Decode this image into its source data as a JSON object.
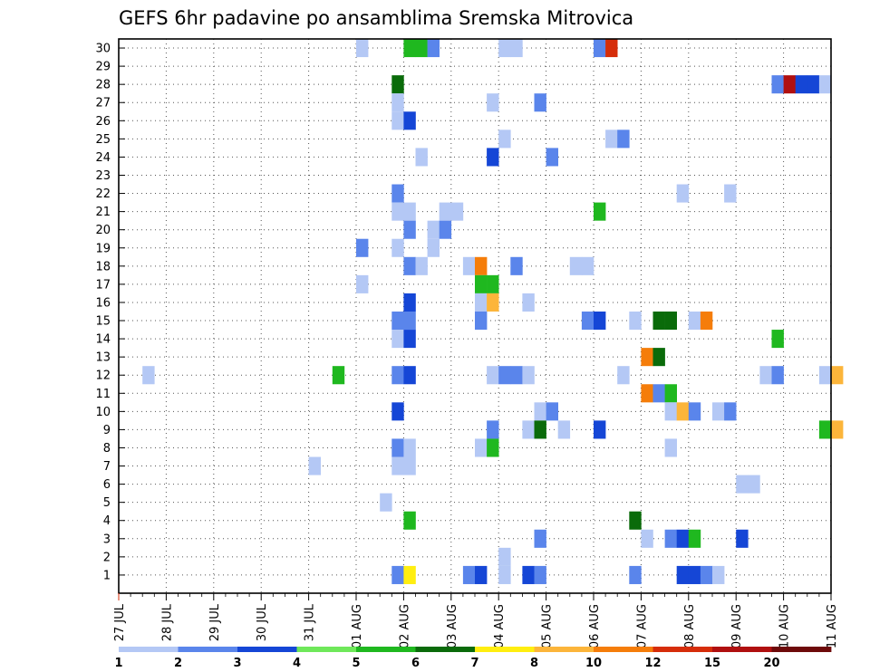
{
  "chart_data": {
    "type": "heatmap",
    "title": "GEFS 6hr padavine po ansamblima Sremska Mitrovica",
    "x_start": "27 JUL",
    "x_end": "11 AUG",
    "x_ticks": [
      "27 JUL",
      "28 JUL",
      "29 JUL",
      "30 JUL",
      "31 JUL",
      "01 AUG",
      "02 AUG",
      "03 AUG",
      "04 AUG",
      "05 AUG",
      "06 AUG",
      "07 AUG",
      "08 AUG",
      "09 AUG",
      "10 AUG",
      "11 AUG"
    ],
    "y_ticks": [
      1,
      2,
      3,
      4,
      5,
      6,
      7,
      8,
      9,
      10,
      11,
      12,
      13,
      14,
      15,
      16,
      17,
      18,
      19,
      20,
      21,
      22,
      23,
      24,
      25,
      26,
      27,
      28,
      29,
      30
    ],
    "y_range": [
      0,
      30
    ],
    "grid": true,
    "color_scale": {
      "labels": [
        "1",
        "2",
        "3",
        "4",
        "5",
        "6",
        "7",
        "8",
        "10",
        "12",
        "15",
        "20"
      ],
      "colors": [
        "#b4c8f5",
        "#5a85eb",
        "#1546d6",
        "#6fe85a",
        "#1fb81f",
        "#0a6b0a",
        "#ffee10",
        "#fcb53a",
        "#f57d0a",
        "#d62d0a",
        "#b01010",
        "#6e0a0a"
      ]
    },
    "cells": [
      {
        "t": "01 AUG 00",
        "m": 30,
        "v": 1
      },
      {
        "t": "02 AUG 00",
        "m": 30,
        "v": 5
      },
      {
        "t": "02 AUG 06",
        "m": 30,
        "v": 5
      },
      {
        "t": "02 AUG 12",
        "m": 30,
        "v": 2
      },
      {
        "t": "04 AUG 00",
        "m": 30,
        "v": 1
      },
      {
        "t": "04 AUG 06",
        "m": 30,
        "v": 1
      },
      {
        "t": "06 AUG 00",
        "m": 30,
        "v": 2
      },
      {
        "t": "06 AUG 06",
        "m": 30,
        "v": 12
      },
      {
        "t": "01 AUG 18",
        "m": 28,
        "v": 6
      },
      {
        "t": "09 AUG 18",
        "m": 28,
        "v": 2
      },
      {
        "t": "10 AUG 00",
        "m": 28,
        "v": 15
      },
      {
        "t": "10 AUG 06",
        "m": 28,
        "v": 3
      },
      {
        "t": "10 AUG 12",
        "m": 28,
        "v": 3
      },
      {
        "t": "10 AUG 18",
        "m": 28,
        "v": 1
      },
      {
        "t": "01 AUG 18",
        "m": 27,
        "v": 1
      },
      {
        "t": "03 AUG 18",
        "m": 27,
        "v": 1
      },
      {
        "t": "04 AUG 18",
        "m": 27,
        "v": 2
      },
      {
        "t": "01 AUG 18",
        "m": 26,
        "v": 1
      },
      {
        "t": "02 AUG 00",
        "m": 26,
        "v": 3
      },
      {
        "t": "04 AUG 00",
        "m": 25,
        "v": 1
      },
      {
        "t": "06 AUG 06",
        "m": 25,
        "v": 1
      },
      {
        "t": "06 AUG 12",
        "m": 25,
        "v": 2
      },
      {
        "t": "02 AUG 06",
        "m": 24,
        "v": 1
      },
      {
        "t": "03 AUG 18",
        "m": 24,
        "v": 3
      },
      {
        "t": "05 AUG 00",
        "m": 24,
        "v": 2
      },
      {
        "t": "01 AUG 18",
        "m": 22,
        "v": 2
      },
      {
        "t": "07 AUG 18",
        "m": 22,
        "v": 1
      },
      {
        "t": "08 AUG 18",
        "m": 22,
        "v": 1
      },
      {
        "t": "01 AUG 18",
        "m": 21,
        "v": 1
      },
      {
        "t": "02 AUG 00",
        "m": 21,
        "v": 1
      },
      {
        "t": "02 AUG 18",
        "m": 21,
        "v": 1
      },
      {
        "t": "03 AUG 00",
        "m": 21,
        "v": 1
      },
      {
        "t": "06 AUG 00",
        "m": 21,
        "v": 5
      },
      {
        "t": "02 AUG 00",
        "m": 20,
        "v": 2
      },
      {
        "t": "02 AUG 12",
        "m": 20,
        "v": 1
      },
      {
        "t": "02 AUG 18",
        "m": 20,
        "v": 2
      },
      {
        "t": "01 AUG 00",
        "m": 19,
        "v": 2
      },
      {
        "t": "01 AUG 18",
        "m": 19,
        "v": 1
      },
      {
        "t": "02 AUG 12",
        "m": 19,
        "v": 1
      },
      {
        "t": "02 AUG 00",
        "m": 18,
        "v": 2
      },
      {
        "t": "02 AUG 06",
        "m": 18,
        "v": 1
      },
      {
        "t": "03 AUG 06",
        "m": 18,
        "v": 1
      },
      {
        "t": "03 AUG 12",
        "m": 18,
        "v": 10
      },
      {
        "t": "04 AUG 06",
        "m": 18,
        "v": 2
      },
      {
        "t": "05 AUG 12",
        "m": 18,
        "v": 1
      },
      {
        "t": "05 AUG 18",
        "m": 18,
        "v": 1
      },
      {
        "t": "01 AUG 00",
        "m": 17,
        "v": 1
      },
      {
        "t": "03 AUG 12",
        "m": 17,
        "v": 5
      },
      {
        "t": "03 AUG 18",
        "m": 17,
        "v": 5
      },
      {
        "t": "02 AUG 00",
        "m": 16,
        "v": 3
      },
      {
        "t": "03 AUG 12",
        "m": 16,
        "v": 1
      },
      {
        "t": "03 AUG 18",
        "m": 16,
        "v": 8
      },
      {
        "t": "04 AUG 12",
        "m": 16,
        "v": 1
      },
      {
        "t": "01 AUG 18",
        "m": 15,
        "v": 2
      },
      {
        "t": "02 AUG 00",
        "m": 15,
        "v": 2
      },
      {
        "t": "03 AUG 12",
        "m": 15,
        "v": 2
      },
      {
        "t": "05 AUG 18",
        "m": 15,
        "v": 2
      },
      {
        "t": "06 AUG 00",
        "m": 15,
        "v": 3
      },
      {
        "t": "06 AUG 18",
        "m": 15,
        "v": 1
      },
      {
        "t": "07 AUG 06",
        "m": 15,
        "v": 6
      },
      {
        "t": "07 AUG 12",
        "m": 15,
        "v": 6
      },
      {
        "t": "08 AUG 00",
        "m": 15,
        "v": 1
      },
      {
        "t": "08 AUG 06",
        "m": 15,
        "v": 10
      },
      {
        "t": "01 AUG 18",
        "m": 14,
        "v": 1
      },
      {
        "t": "02 AUG 00",
        "m": 14,
        "v": 3
      },
      {
        "t": "09 AUG 18",
        "m": 14,
        "v": 5
      },
      {
        "t": "07 AUG 00",
        "m": 13,
        "v": 10
      },
      {
        "t": "07 AUG 06",
        "m": 13,
        "v": 6
      },
      {
        "t": "27 JUL 12",
        "m": 12,
        "v": 1
      },
      {
        "t": "31 JUL 12",
        "m": 12,
        "v": 5
      },
      {
        "t": "01 AUG 18",
        "m": 12,
        "v": 2
      },
      {
        "t": "02 AUG 00",
        "m": 12,
        "v": 3
      },
      {
        "t": "03 AUG 18",
        "m": 12,
        "v": 1
      },
      {
        "t": "04 AUG 00",
        "m": 12,
        "v": 2
      },
      {
        "t": "04 AUG 06",
        "m": 12,
        "v": 2
      },
      {
        "t": "04 AUG 12",
        "m": 12,
        "v": 1
      },
      {
        "t": "06 AUG 12",
        "m": 12,
        "v": 1
      },
      {
        "t": "09 AUG 12",
        "m": 12,
        "v": 1
      },
      {
        "t": "09 AUG 18",
        "m": 12,
        "v": 2
      },
      {
        "t": "10 AUG 18",
        "m": 12,
        "v": 1
      },
      {
        "t": "11 AUG 00",
        "m": 12,
        "v": 8
      },
      {
        "t": "07 AUG 00",
        "m": 11,
        "v": 10
      },
      {
        "t": "07 AUG 06",
        "m": 11,
        "v": 2
      },
      {
        "t": "07 AUG 12",
        "m": 11,
        "v": 5
      },
      {
        "t": "01 AUG 18",
        "m": 10,
        "v": 3
      },
      {
        "t": "04 AUG 18",
        "m": 10,
        "v": 1
      },
      {
        "t": "05 AUG 00",
        "m": 10,
        "v": 2
      },
      {
        "t": "07 AUG 12",
        "m": 10,
        "v": 1
      },
      {
        "t": "07 AUG 18",
        "m": 10,
        "v": 8
      },
      {
        "t": "08 AUG 00",
        "m": 10,
        "v": 2
      },
      {
        "t": "08 AUG 12",
        "m": 10,
        "v": 1
      },
      {
        "t": "08 AUG 18",
        "m": 10,
        "v": 2
      },
      {
        "t": "03 AUG 18",
        "m": 9,
        "v": 2
      },
      {
        "t": "04 AUG 12",
        "m": 9,
        "v": 1
      },
      {
        "t": "04 AUG 18",
        "m": 9,
        "v": 6
      },
      {
        "t": "05 AUG 06",
        "m": 9,
        "v": 1
      },
      {
        "t": "06 AUG 00",
        "m": 9,
        "v": 3
      },
      {
        "t": "10 AUG 18",
        "m": 9,
        "v": 5
      },
      {
        "t": "11 AUG 00",
        "m": 9,
        "v": 8
      },
      {
        "t": "01 AUG 18",
        "m": 8,
        "v": 2
      },
      {
        "t": "02 AUG 00",
        "m": 8,
        "v": 1
      },
      {
        "t": "03 AUG 12",
        "m": 8,
        "v": 1
      },
      {
        "t": "03 AUG 18",
        "m": 8,
        "v": 5
      },
      {
        "t": "07 AUG 12",
        "m": 8,
        "v": 1
      },
      {
        "t": "31 JUL 00",
        "m": 7,
        "v": 1
      },
      {
        "t": "01 AUG 18",
        "m": 7,
        "v": 1
      },
      {
        "t": "02 AUG 00",
        "m": 7,
        "v": 1
      },
      {
        "t": "09 AUG 00",
        "m": 6,
        "v": 1
      },
      {
        "t": "09 AUG 06",
        "m": 6,
        "v": 1
      },
      {
        "t": "01 AUG 12",
        "m": 5,
        "v": 1
      },
      {
        "t": "02 AUG 00",
        "m": 4,
        "v": 5
      },
      {
        "t": "06 AUG 18",
        "m": 4,
        "v": 6
      },
      {
        "t": "04 AUG 18",
        "m": 3,
        "v": 2
      },
      {
        "t": "07 AUG 00",
        "m": 3,
        "v": 1
      },
      {
        "t": "07 AUG 12",
        "m": 3,
        "v": 2
      },
      {
        "t": "07 AUG 18",
        "m": 3,
        "v": 3
      },
      {
        "t": "08 AUG 00",
        "m": 3,
        "v": 5
      },
      {
        "t": "09 AUG 00",
        "m": 3,
        "v": 3
      },
      {
        "t": "04 AUG 00",
        "m": 2,
        "v": 1
      },
      {
        "t": "01 AUG 18",
        "m": 1,
        "v": 2
      },
      {
        "t": "02 AUG 00",
        "m": 1,
        "v": 7
      },
      {
        "t": "03 AUG 06",
        "m": 1,
        "v": 2
      },
      {
        "t": "03 AUG 12",
        "m": 1,
        "v": 3
      },
      {
        "t": "04 AUG 00",
        "m": 1,
        "v": 1
      },
      {
        "t": "04 AUG 12",
        "m": 1,
        "v": 3
      },
      {
        "t": "04 AUG 18",
        "m": 1,
        "v": 2
      },
      {
        "t": "06 AUG 18",
        "m": 1,
        "v": 2
      },
      {
        "t": "07 AUG 18",
        "m": 1,
        "v": 3
      },
      {
        "t": "08 AUG 00",
        "m": 1,
        "v": 3
      },
      {
        "t": "08 AUG 06",
        "m": 1,
        "v": 2
      },
      {
        "t": "08 AUG 12",
        "m": 1,
        "v": 1
      }
    ]
  }
}
